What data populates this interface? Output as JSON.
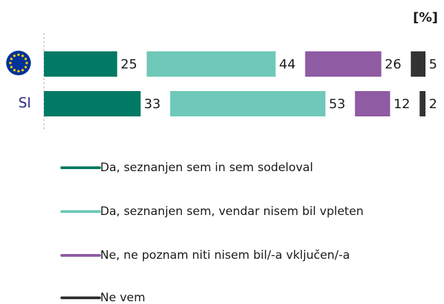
{
  "chart_data": {
    "type": "bar",
    "orientation": "horizontal",
    "stacked": true,
    "unit_label": "[%]",
    "categories": [
      null,
      "SI"
    ],
    "series": [
      {
        "name": "Da, seznanjen sem in sem sodeloval",
        "color": "#007a64",
        "values": [
          25,
          33
        ]
      },
      {
        "name": "Da, seznanjen sem, vendar nisem bil vpleten",
        "color": "#6fc9b8",
        "values": [
          44,
          53
        ]
      },
      {
        "name": "Ne, ne poznam niti nisem bil/-a vključen/-a",
        "color": "#8f5ba3",
        "values": [
          26,
          12
        ]
      },
      {
        "name": "Ne vem",
        "color": "#333333",
        "values": [
          5,
          2
        ]
      }
    ]
  }
}
